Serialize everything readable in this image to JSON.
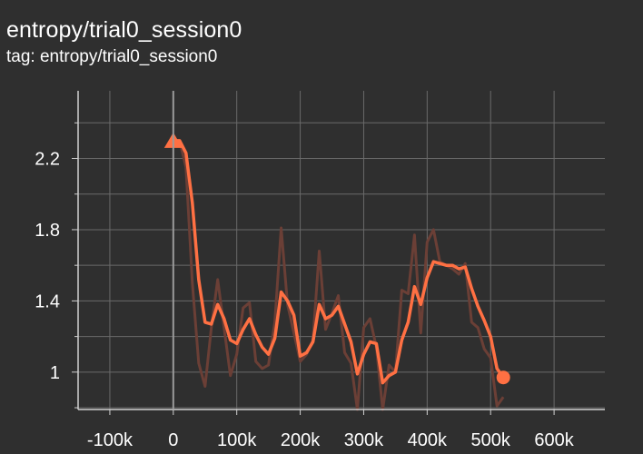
{
  "header": {
    "title": "entropy/trial0_session0",
    "tag_line": "tag: entropy/trial0_session0"
  },
  "colors": {
    "background": "#2f2f2f",
    "grid": "#6a6a6a",
    "axis": "#d0d0d0",
    "smoothed_line": "#ff7043",
    "raw_line": "#6b3f36"
  },
  "chart_data": {
    "type": "line",
    "title": "entropy/trial0_session0",
    "subtitle": "tag: entropy/trial0_session0",
    "xlabel": "",
    "ylabel": "",
    "xlim": [
      -150000,
      680000
    ],
    "ylim": [
      0.79,
      2.58
    ],
    "x_ticks": [
      -100000,
      0,
      100000,
      200000,
      300000,
      400000,
      500000,
      600000
    ],
    "x_tick_labels": [
      "-100k",
      "0",
      "100k",
      "200k",
      "300k",
      "400k",
      "500k",
      "600k"
    ],
    "y_ticks": [
      1.0,
      1.4,
      1.8,
      2.2
    ],
    "y_tick_labels": [
      "1",
      "1.4",
      "1.8",
      "2.2"
    ],
    "y_minor_ticks": [
      0.8,
      1.2,
      1.6,
      2.0,
      2.4
    ],
    "grid": true,
    "series": [
      {
        "role": "raw",
        "x": [
          0,
          10000,
          20000,
          30000,
          40000,
          50000,
          60000,
          70000,
          80000,
          90000,
          100000,
          110000,
          120000,
          130000,
          140000,
          150000,
          160000,
          170000,
          180000,
          190000,
          200000,
          210000,
          220000,
          230000,
          240000,
          250000,
          260000,
          270000,
          280000,
          290000,
          300000,
          310000,
          320000,
          330000,
          340000,
          350000,
          360000,
          370000,
          380000,
          390000,
          400000,
          410000,
          420000,
          430000,
          440000,
          450000,
          460000,
          470000,
          480000,
          490000,
          500000,
          510000,
          520000
        ],
        "y": [
          2.3,
          2.3,
          2.15,
          1.5,
          1.05,
          0.92,
          1.25,
          1.52,
          1.25,
          0.98,
          1.1,
          1.36,
          1.39,
          1.06,
          1.02,
          1.04,
          1.28,
          1.81,
          1.38,
          1.22,
          1.06,
          1.1,
          1.18,
          1.68,
          1.24,
          1.33,
          1.43,
          1.11,
          1.05,
          0.78,
          1.25,
          1.3,
          1.14,
          0.79,
          1.04,
          1.0,
          1.46,
          1.44,
          1.77,
          1.22,
          1.73,
          1.8,
          1.62,
          1.6,
          1.58,
          1.55,
          1.61,
          1.28,
          1.25,
          1.13,
          1.08,
          0.81,
          0.86
        ]
      },
      {
        "role": "smoothed",
        "x": [
          0,
          10000,
          20000,
          30000,
          40000,
          50000,
          60000,
          70000,
          80000,
          90000,
          100000,
          110000,
          120000,
          130000,
          140000,
          150000,
          160000,
          170000,
          180000,
          190000,
          200000,
          210000,
          220000,
          230000,
          240000,
          250000,
          260000,
          270000,
          280000,
          290000,
          300000,
          310000,
          320000,
          330000,
          340000,
          350000,
          360000,
          370000,
          380000,
          390000,
          400000,
          410000,
          420000,
          430000,
          440000,
          450000,
          460000,
          470000,
          480000,
          490000,
          500000,
          510000,
          520000
        ],
        "y": [
          2.3,
          2.3,
          2.23,
          1.95,
          1.52,
          1.28,
          1.27,
          1.38,
          1.3,
          1.18,
          1.16,
          1.24,
          1.3,
          1.21,
          1.14,
          1.1,
          1.19,
          1.45,
          1.4,
          1.32,
          1.09,
          1.11,
          1.17,
          1.38,
          1.3,
          1.32,
          1.37,
          1.27,
          1.17,
          0.99,
          1.1,
          1.17,
          1.16,
          0.94,
          0.98,
          1.0,
          1.18,
          1.28,
          1.48,
          1.38,
          1.53,
          1.62,
          1.61,
          1.6,
          1.6,
          1.58,
          1.59,
          1.47,
          1.37,
          1.29,
          1.2,
          1.02,
          0.97
        ]
      }
    ]
  }
}
